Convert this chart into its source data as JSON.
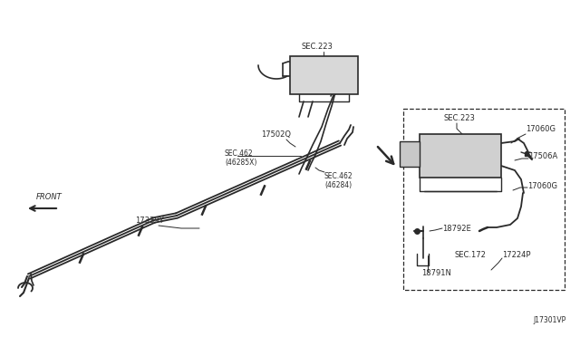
{
  "bg_color": "#ffffff",
  "line_color": "#2a2a2a",
  "fig_width": 6.4,
  "fig_height": 3.72,
  "dpi": 100,
  "watermark": "J17301VP",
  "labels": {
    "SEC223_top": "SEC.223",
    "SEC462_top": "SEC.462\n(46285X)",
    "17502Q": "17502Q",
    "SEC462_bot": "SEC.462\n(46284)",
    "17339Y": "17339Y",
    "FRONT": "FRONT",
    "SEC223_right": "SEC.223",
    "17060G_top": "17060G",
    "17506A": "17506A",
    "17060G_bot": "17060G",
    "18792E": "18792E",
    "SEC172": "SEC.172",
    "18791N": "18791N",
    "17224P": "17224P"
  }
}
